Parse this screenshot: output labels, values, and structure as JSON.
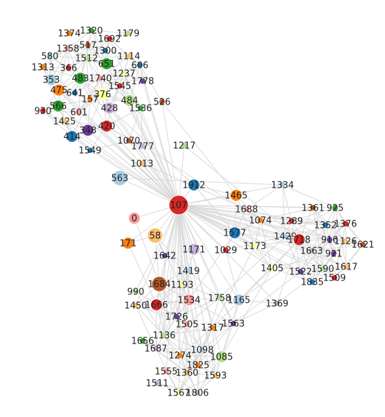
{
  "colors": {
    "red": "#d62728",
    "orange": "#ff7f0e",
    "blue": "#1f77b4",
    "green": "#2ca02c",
    "purple": "#6a3d9a",
    "lightblue": "#a6cee3",
    "lightgreen": "#b2df8a",
    "lightorange": "#fdbf6f",
    "pink": "#fb9a99",
    "lightpurple": "#cab2d6",
    "yellow": "#ffff99",
    "brown": "#b15928",
    "edge": "#d8d8d8"
  },
  "hub": "107",
  "nodes": [
    {
      "id": "107",
      "color": "red",
      "size": "hub"
    },
    {
      "id": "1374",
      "color": "orange"
    },
    {
      "id": "1320",
      "color": "green"
    },
    {
      "id": "1692",
      "color": "red"
    },
    {
      "id": "1179",
      "color": "lightgreen"
    },
    {
      "id": "1358",
      "color": "pink"
    },
    {
      "id": "517",
      "color": "brown"
    },
    {
      "id": "1300",
      "color": "blue"
    },
    {
      "id": "580",
      "color": "lightblue"
    },
    {
      "id": "1512",
      "color": "lightgreen"
    },
    {
      "id": "651",
      "color": "green",
      "size": "mid"
    },
    {
      "id": "1114",
      "color": "lightorange"
    },
    {
      "id": "1313",
      "color": "orange"
    },
    {
      "id": "366",
      "color": "red"
    },
    {
      "id": "606",
      "color": "blue"
    },
    {
      "id": "1237",
      "color": "yellow"
    },
    {
      "id": "353",
      "color": "lightblue",
      "size": "mid"
    },
    {
      "id": "483",
      "color": "green",
      "size": "mid"
    },
    {
      "id": "1740",
      "color": "pink"
    },
    {
      "id": "1778",
      "color": "purple"
    },
    {
      "id": "1545",
      "color": "red"
    },
    {
      "id": "475",
      "color": "orange",
      "size": "mid"
    },
    {
      "id": "641",
      "color": "blue"
    },
    {
      "id": "376",
      "color": "yellow",
      "size": "mid"
    },
    {
      "id": "157",
      "color": "orange"
    },
    {
      "id": "484",
      "color": "lightgreen",
      "size": "mid"
    },
    {
      "id": "526",
      "color": "brown"
    },
    {
      "id": "566",
      "color": "green",
      "size": "mid"
    },
    {
      "id": "428",
      "color": "lightpurple",
      "size": "mid"
    },
    {
      "id": "1536",
      "color": "green"
    },
    {
      "id": "930",
      "color": "red"
    },
    {
      "id": "601",
      "color": "pink"
    },
    {
      "id": "1425",
      "color": "lightorange"
    },
    {
      "id": "420",
      "color": "red",
      "size": "mid"
    },
    {
      "id": "348",
      "color": "purple",
      "size": "mid"
    },
    {
      "id": "414",
      "color": "blue",
      "size": "mid"
    },
    {
      "id": "1070",
      "color": "brown"
    },
    {
      "id": "1777",
      "color": "lightpurple"
    },
    {
      "id": "1549",
      "color": "blue"
    },
    {
      "id": "1217",
      "color": "lightgreen"
    },
    {
      "id": "1013",
      "color": "lightorange"
    },
    {
      "id": "563",
      "color": "lightblue",
      "size": "big"
    },
    {
      "id": "1912",
      "color": "blue",
      "size": "mid"
    },
    {
      "id": "1334",
      "color": "lightblue"
    },
    {
      "id": "1465",
      "color": "orange",
      "size": "mid"
    },
    {
      "id": "1688",
      "color": "pink"
    },
    {
      "id": "1361",
      "color": "brown"
    },
    {
      "id": "925",
      "color": "green"
    },
    {
      "id": "1074",
      "color": "orange"
    },
    {
      "id": "1289",
      "color": "red"
    },
    {
      "id": "1352",
      "color": "blue"
    },
    {
      "id": "1376",
      "color": "red"
    },
    {
      "id": "0",
      "color": "pink",
      "size": "mid"
    },
    {
      "id": "1577",
      "color": "blue",
      "size": "mid"
    },
    {
      "id": "1429",
      "color": "lightblue"
    },
    {
      "id": "1718",
      "color": "red",
      "size": "mid"
    },
    {
      "id": "916",
      "color": "purple"
    },
    {
      "id": "1126",
      "color": "lightorange"
    },
    {
      "id": "1621",
      "color": "brown"
    },
    {
      "id": "58",
      "color": "lightorange",
      "size": "big"
    },
    {
      "id": "171",
      "color": "orange",
      "size": "mid"
    },
    {
      "id": "1171",
      "color": "lightpurple",
      "size": "mid"
    },
    {
      "id": "1029",
      "color": "red"
    },
    {
      "id": "1173",
      "color": "yellow"
    },
    {
      "id": "1663",
      "color": "lightpurple"
    },
    {
      "id": "921",
      "color": "purple"
    },
    {
      "id": "1642",
      "color": "purple"
    },
    {
      "id": "1617",
      "color": "lightorange"
    },
    {
      "id": "1419",
      "color": "lightblue"
    },
    {
      "id": "1405",
      "color": "yellow"
    },
    {
      "id": "1522",
      "color": "purple"
    },
    {
      "id": "1590",
      "color": "lightgreen"
    },
    {
      "id": "1509",
      "color": "red"
    },
    {
      "id": "1835",
      "color": "blue"
    },
    {
      "id": "990",
      "color": "lightgreen"
    },
    {
      "id": "1684",
      "color": "brown",
      "size": "big"
    },
    {
      "id": "1193",
      "color": "yellow"
    },
    {
      "id": "1534",
      "color": "pink",
      "size": "mid"
    },
    {
      "id": "1758",
      "color": "lightgreen"
    },
    {
      "id": "1165",
      "color": "lightblue",
      "size": "mid"
    },
    {
      "id": "1450",
      "color": "lightorange"
    },
    {
      "id": "1666",
      "color": "red",
      "size": "mid"
    },
    {
      "id": "1369",
      "color": "lightpurple"
    },
    {
      "id": "1726",
      "color": "purple"
    },
    {
      "id": "1505",
      "color": "pink"
    },
    {
      "id": "1317",
      "color": "orange"
    },
    {
      "id": "1563",
      "color": "purple"
    },
    {
      "id": "1136",
      "color": "lightgreen"
    },
    {
      "id": "1656",
      "color": "green"
    },
    {
      "id": "1687",
      "color": "lightpurple"
    },
    {
      "id": "1098",
      "color": "lightblue"
    },
    {
      "id": "1085",
      "color": "lightgreen",
      "size": "mid"
    },
    {
      "id": "1274",
      "color": "orange"
    },
    {
      "id": "1825",
      "color": "orange"
    },
    {
      "id": "1555",
      "color": "pink"
    },
    {
      "id": "1360",
      "color": "lightorange"
    },
    {
      "id": "1593",
      "color": "lightorange"
    },
    {
      "id": "1511",
      "color": "lightpurple"
    },
    {
      "id": "1567",
      "color": "yellow"
    },
    {
      "id": "1806",
      "color": "lightpurple"
    }
  ]
}
